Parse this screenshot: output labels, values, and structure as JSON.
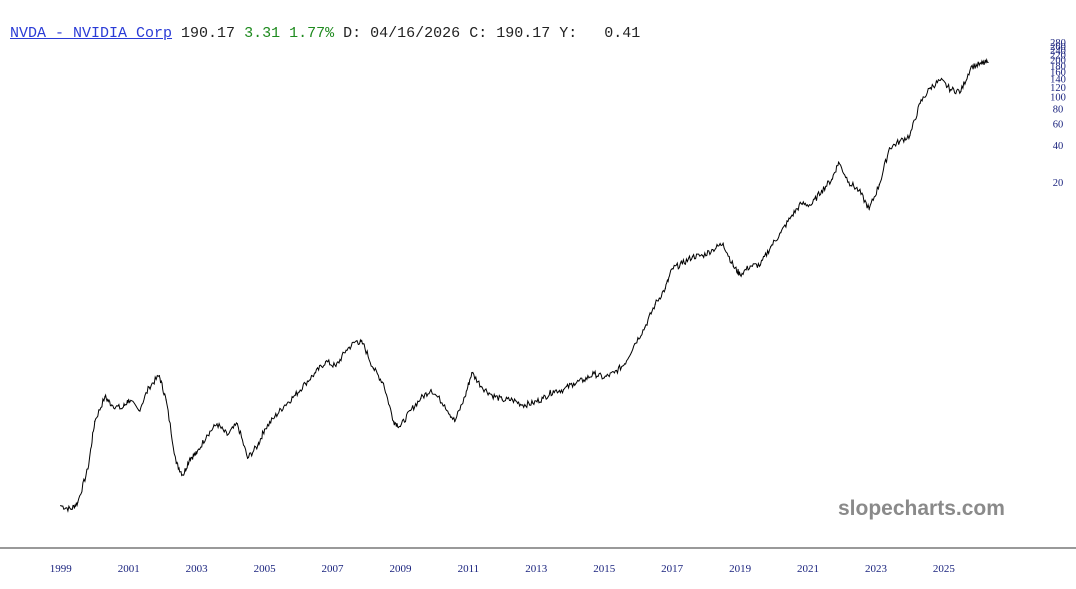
{
  "header": {
    "symbol_link": "NVDA - NVIDIA Corp",
    "price": "190.17",
    "change": "3.31",
    "change_pct": "1.77%",
    "date_label": "D:",
    "date": "04/16/2026",
    "close_label": "C:",
    "close": "190.17",
    "yield_label": "Y:",
    "yield": "0.41"
  },
  "watermark": "slopecharts.com",
  "colors": {
    "line": "#000000",
    "axis_text": "#1a237e",
    "symbol_link": "#2a3bd6",
    "change": "#1e8a1e",
    "watermark": "#8a8a8a"
  },
  "chart_data": {
    "type": "line",
    "y_scale": "log",
    "x_tick_labels": [
      "1999",
      "2001",
      "2003",
      "2005",
      "2007",
      "2009",
      "2011",
      "2013",
      "2015",
      "2017",
      "2019",
      "2021",
      "2023",
      "2025"
    ],
    "y_tick_labels": [
      "280",
      "260",
      "240",
      "220",
      "200",
      "180",
      "160",
      "140",
      "120",
      "100",
      "80",
      "60",
      "40",
      "20"
    ],
    "y_tick_values": [
      280,
      260,
      240,
      220,
      200,
      180,
      160,
      140,
      120,
      100,
      80,
      60,
      40,
      20
    ],
    "ylim": [
      0.035,
      290
    ],
    "xlim": [
      1998.8,
      2027.3
    ],
    "series": [
      {
        "x": [
          1999.0,
          1999.3,
          1999.5,
          1999.8,
          2000.0,
          2000.3,
          2000.5,
          2000.8,
          2001.0,
          2001.3,
          2001.6,
          2001.9,
          2002.1,
          2002.4,
          2002.6,
          2002.8,
          2003.0,
          2003.3,
          2003.6,
          2003.9,
          2004.2,
          2004.5,
          2004.8,
          2005.0,
          2005.3,
          2005.6,
          2005.9,
          2006.2,
          2006.5,
          2006.8,
          2007.1,
          2007.4,
          2007.7,
          2007.9,
          2008.2,
          2008.5,
          2008.8,
          2009.0,
          2009.3,
          2009.6,
          2009.9,
          2010.3,
          2010.6,
          2010.9,
          2011.1,
          2011.4,
          2011.7,
          2012.0,
          2012.3,
          2012.6,
          2012.9,
          2013.2,
          2013.5,
          2013.8,
          2014.1,
          2014.4,
          2014.7,
          2015.0,
          2015.3,
          2015.6,
          2015.9,
          2016.2,
          2016.5,
          2016.8,
          2017.0,
          2017.3,
          2017.6,
          2017.9,
          2018.2,
          2018.5,
          2018.8,
          2019.0,
          2019.3,
          2019.6,
          2019.9,
          2020.2,
          2020.5,
          2020.8,
          2021.1,
          2021.4,
          2021.7,
          2021.9,
          2022.2,
          2022.5,
          2022.8,
          2023.1,
          2023.4,
          2023.7,
          2024.0,
          2024.3,
          2024.6,
          2024.9,
          2025.2,
          2025.5,
          2025.8,
          2026.1,
          2026.3
        ],
        "y": [
          0.045,
          0.042,
          0.048,
          0.09,
          0.22,
          0.35,
          0.3,
          0.28,
          0.33,
          0.27,
          0.42,
          0.52,
          0.33,
          0.1,
          0.08,
          0.11,
          0.12,
          0.17,
          0.21,
          0.17,
          0.21,
          0.11,
          0.14,
          0.19,
          0.24,
          0.3,
          0.36,
          0.45,
          0.55,
          0.68,
          0.62,
          0.84,
          1.0,
          0.95,
          0.6,
          0.45,
          0.22,
          0.2,
          0.27,
          0.34,
          0.4,
          0.3,
          0.22,
          0.35,
          0.55,
          0.42,
          0.36,
          0.33,
          0.33,
          0.3,
          0.31,
          0.34,
          0.39,
          0.4,
          0.45,
          0.48,
          0.54,
          0.5,
          0.55,
          0.65,
          0.95,
          1.3,
          2.0,
          2.7,
          3.9,
          4.3,
          4.9,
          5.0,
          5.6,
          6.3,
          4.1,
          3.5,
          4.1,
          4.2,
          5.9,
          7.7,
          10.4,
          13.3,
          13.0,
          17.0,
          21.0,
          29.0,
          20.0,
          17.0,
          12.0,
          19.0,
          38.0,
          43.0,
          48.0,
          88.0,
          118.0,
          136.0,
          114.0,
          110.0,
          175.0,
          185.0,
          190.0
        ]
      }
    ]
  }
}
